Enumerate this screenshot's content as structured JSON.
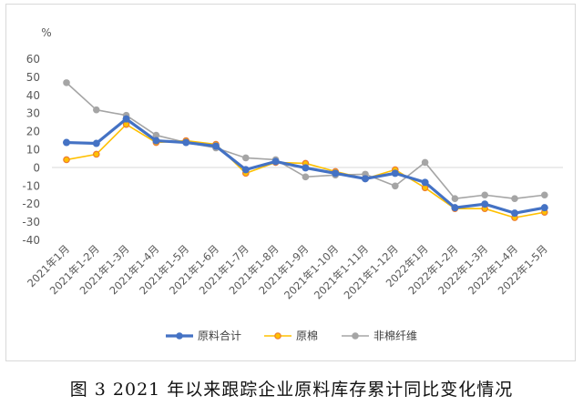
{
  "caption": "图 3   2021 年以来跟踪企业原料库存累计同比变化情况",
  "chart_data": {
    "type": "line",
    "unit_label": "%",
    "categories": [
      "2021年1月",
      "2021年1-2月",
      "2021年1-3月",
      "2021年1-4月",
      "2021年1-5月",
      "2021年1-6月",
      "2021年1-7月",
      "2021年1-8月",
      "2021年1-9月",
      "2021年1-10月",
      "2021年1-11月",
      "2021年1-12月",
      "2022年1月",
      "2022年1-2月",
      "2022年1-3月",
      "2022年1-4月",
      "2022年1-5月"
    ],
    "yticks": [
      60,
      50,
      40,
      30,
      20,
      10,
      0,
      -10,
      -20,
      -30,
      -40
    ],
    "ylim": [
      -40,
      60
    ],
    "grid": false,
    "legend_position": "bottom",
    "series": [
      {
        "name": "原料合计",
        "color": "#4472c4",
        "values": [
          14,
          13.5,
          27,
          15,
          14,
          12,
          -1,
          3.5,
          0,
          -3,
          -6,
          -3,
          -8,
          -22,
          -20,
          -25,
          -22
        ]
      },
      {
        "name": "原棉",
        "color": "#ffc000",
        "values": [
          4.5,
          7.5,
          24,
          14,
          15,
          13,
          -3,
          3,
          2.5,
          -2,
          -6,
          -1,
          -11,
          -22.5,
          -22.5,
          -27.5,
          -24.5
        ]
      },
      {
        "name": "非棉纤维",
        "color": "#a5a5a5",
        "values": [
          47,
          32,
          29,
          18,
          14,
          11,
          5.5,
          4.5,
          -5,
          -4,
          -3.5,
          -10,
          3,
          -17,
          -15,
          -17,
          -15
        ]
      }
    ]
  }
}
